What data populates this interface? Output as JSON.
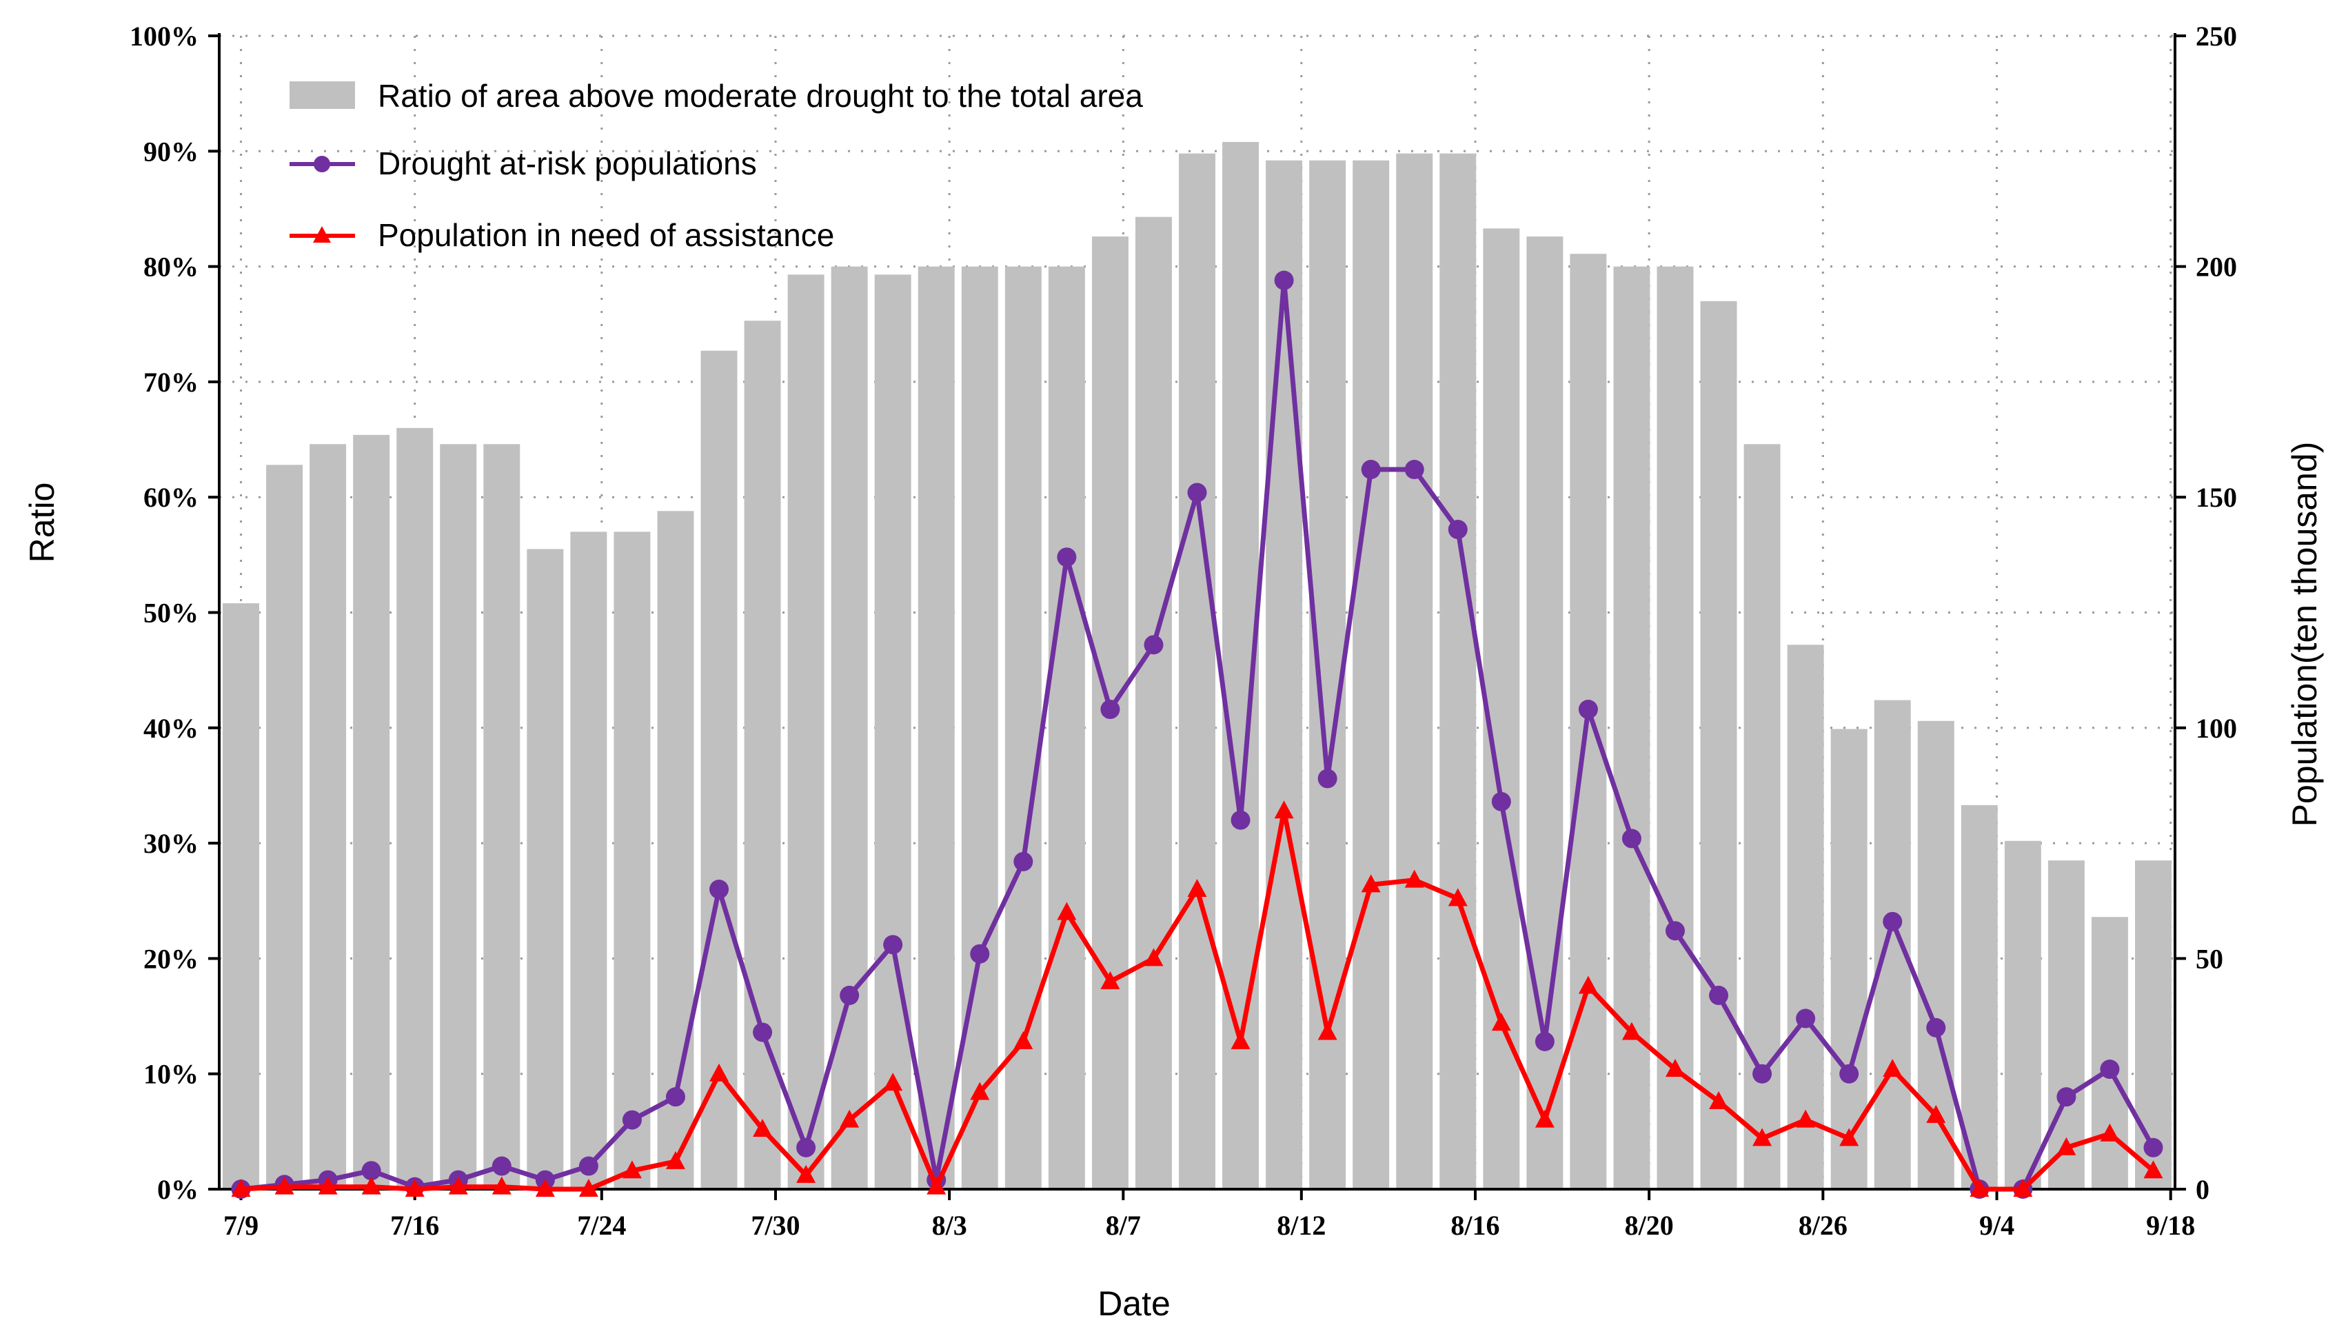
{
  "chart_data": {
    "type": "bar+line",
    "title": "",
    "xlabel": "Date",
    "ylabel_left": "Ratio",
    "ylabel_right": "Population(ten thousand)",
    "ylim_left": [
      0,
      100
    ],
    "ylim_right": [
      0,
      250
    ],
    "yticks_left": [
      "0%",
      "10%",
      "20%",
      "30%",
      "40%",
      "50%",
      "60%",
      "70%",
      "80%",
      "90%",
      "100%"
    ],
    "yticks_right": [
      "0",
      "50",
      "100",
      "150",
      "200",
      "250"
    ],
    "xtick_labels": [
      {
        "label": "7/9",
        "index": 0
      },
      {
        "label": "7/16",
        "index": 4
      },
      {
        "label": "7/24",
        "index": 8.3
      },
      {
        "label": "7/30",
        "index": 12.3
      },
      {
        "label": "8/3",
        "index": 16.3
      },
      {
        "label": "8/7",
        "index": 20.3
      },
      {
        "label": "8/12",
        "index": 24.4
      },
      {
        "label": "8/16",
        "index": 28.4
      },
      {
        "label": "8/20",
        "index": 32.4
      },
      {
        "label": "8/26",
        "index": 36.4
      },
      {
        "label": "9/4",
        "index": 40.4
      },
      {
        "label": "9/18",
        "index": 44.4
      }
    ],
    "grid": true,
    "legend_position": "top-left",
    "series": [
      {
        "name": "Ratio of area above moderate drought to the total area",
        "kind": "bar",
        "axis": "left",
        "color": "#c0c0c0",
        "values": [
          50.8,
          62.8,
          64.6,
          65.4,
          66,
          64.6,
          64.6,
          55.5,
          57,
          57,
          58.8,
          72.7,
          75.3,
          79.3,
          80,
          79.3,
          80,
          80,
          80,
          80,
          82.6,
          84.3,
          89.8,
          90.8,
          89.2,
          89.2,
          89.2,
          89.8,
          89.8,
          83.3,
          82.6,
          81.1,
          80,
          80,
          77,
          64.6,
          47.2,
          39.9,
          42.4,
          40.6,
          33.3,
          30.2,
          28.5,
          23.6,
          28.5
        ]
      },
      {
        "name": "Drought at-risk populations",
        "kind": "line",
        "marker": "circle",
        "axis": "right",
        "color": "#7030a0",
        "values": [
          0,
          1,
          2,
          4,
          0.5,
          2,
          5,
          2,
          5,
          15,
          20,
          65,
          34,
          9,
          42,
          53,
          2,
          51,
          71,
          137,
          104,
          118,
          151,
          80,
          197,
          89,
          156,
          156,
          143,
          84,
          32,
          104,
          76,
          56,
          42,
          25,
          37,
          25,
          58,
          35,
          0,
          0,
          20,
          26,
          9
        ]
      },
      {
        "name": "Population in need of assistance",
        "kind": "line",
        "marker": "triangle",
        "axis": "right",
        "color": "#ff0000",
        "values": [
          0,
          0.5,
          0.5,
          0.5,
          0,
          0.5,
          0.5,
          0,
          0,
          4,
          6,
          25,
          13,
          3,
          15,
          23,
          0.5,
          21,
          32,
          60,
          45,
          50,
          65,
          32,
          82,
          34,
          66,
          67,
          63,
          36,
          15,
          44,
          34,
          26,
          19,
          11,
          15,
          11,
          26,
          16,
          0,
          0,
          9,
          12,
          4
        ]
      }
    ]
  }
}
